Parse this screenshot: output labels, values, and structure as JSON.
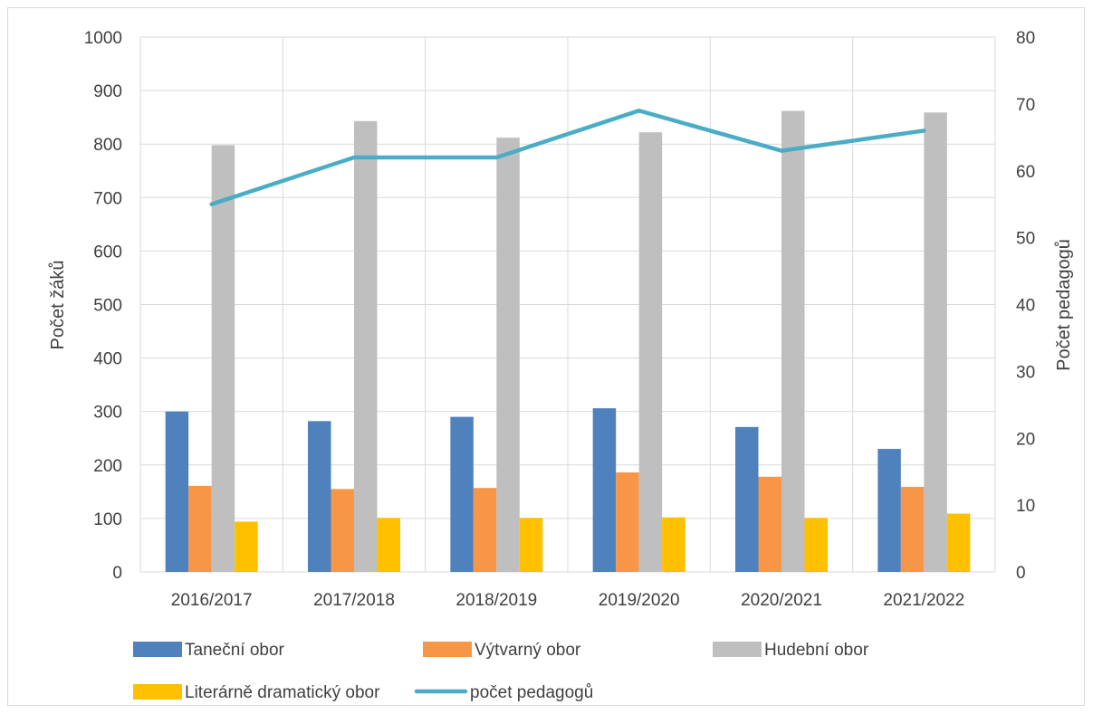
{
  "chart_data": {
    "type": "bar",
    "categories": [
      "2016/2017",
      "2017/2018",
      "2018/2019",
      "2019/2020",
      "2020/2021",
      "2021/2022"
    ],
    "series": [
      {
        "name": "Taneční obor",
        "axis": "left",
        "color": "#4F81BD",
        "values": [
          300,
          282,
          290,
          306,
          271,
          230
        ]
      },
      {
        "name": "Výtvarný obor",
        "axis": "left",
        "color": "#F79646",
        "values": [
          161,
          155,
          157,
          186,
          178,
          159
        ]
      },
      {
        "name": "Hudební obor",
        "axis": "left",
        "color": "#BFBFBF",
        "values": [
          798,
          843,
          812,
          822,
          862,
          859
        ]
      },
      {
        "name": "Literárně dramatický obor",
        "axis": "left",
        "color": "#FFC000",
        "values": [
          94,
          101,
          101,
          102,
          101,
          109
        ]
      }
    ],
    "line_series": {
      "name": "počet pedagogů",
      "type": "line",
      "axis": "right",
      "color": "#4BACC6",
      "values": [
        55,
        62,
        62,
        69,
        63,
        66
      ]
    },
    "ylabel": "Počet žáků",
    "y2label": "Počet pedagogů",
    "ylim": [
      0,
      1000
    ],
    "y2lim": [
      0,
      80
    ],
    "yticks": [
      "0",
      "100",
      "200",
      "300",
      "400",
      "500",
      "600",
      "700",
      "800",
      "900",
      "1000"
    ],
    "y2ticks": [
      "0",
      "10",
      "20",
      "30",
      "40",
      "50",
      "60",
      "70",
      "80"
    ],
    "grid": true,
    "legend_position": "bottom"
  }
}
